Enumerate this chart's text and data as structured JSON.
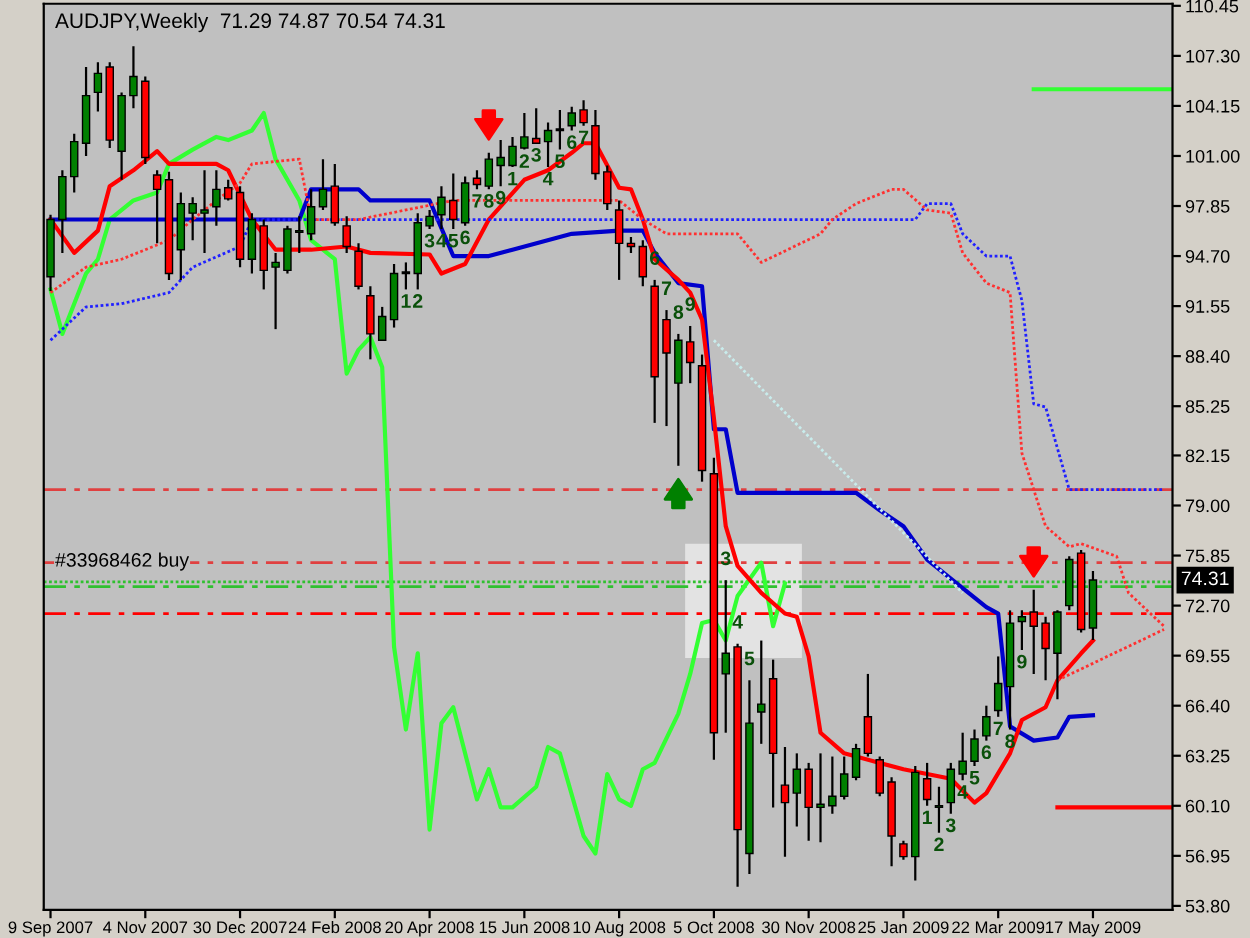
{
  "chart_data": {
    "type": "candlestick",
    "title": "AUDJPY,Weekly  71.29 74.87 70.54 74.31",
    "x": [
      "2007-09-09",
      "2007-09-16",
      "2007-09-23",
      "2007-09-30",
      "2007-10-07",
      "2007-10-14",
      "2007-10-21",
      "2007-10-28",
      "2007-11-04",
      "2007-11-11",
      "2007-11-18",
      "2007-11-25",
      "2007-12-02",
      "2007-12-09",
      "2007-12-16",
      "2007-12-23",
      "2007-12-30",
      "2008-01-06",
      "2008-01-13",
      "2008-01-20",
      "2008-01-27",
      "2008-02-03",
      "2008-02-10",
      "2008-02-17",
      "2008-02-24",
      "2008-03-02",
      "2008-03-09",
      "2008-03-16",
      "2008-03-23",
      "2008-03-30",
      "2008-04-06",
      "2008-04-13",
      "2008-04-20",
      "2008-04-27",
      "2008-05-04",
      "2008-05-11",
      "2008-05-18",
      "2008-05-25",
      "2008-06-01",
      "2008-06-08",
      "2008-06-15",
      "2008-06-22",
      "2008-06-29",
      "2008-07-06",
      "2008-07-13",
      "2008-07-20",
      "2008-07-27",
      "2008-08-03",
      "2008-08-10",
      "2008-08-17",
      "2008-08-24",
      "2008-08-31",
      "2008-09-07",
      "2008-09-14",
      "2008-09-21",
      "2008-09-28",
      "2008-10-05",
      "2008-10-12",
      "2008-10-19",
      "2008-10-26",
      "2008-11-02",
      "2008-11-09",
      "2008-11-16",
      "2008-11-23",
      "2008-11-30",
      "2008-12-07",
      "2008-12-14",
      "2008-12-21",
      "2008-12-28",
      "2009-01-04",
      "2009-01-11",
      "2009-01-18",
      "2009-01-25",
      "2009-02-01",
      "2009-02-08",
      "2009-02-15",
      "2009-02-22",
      "2009-03-01",
      "2009-03-08",
      "2009-03-15",
      "2009-03-22",
      "2009-03-29",
      "2009-04-05",
      "2009-04-12",
      "2009-04-19",
      "2009-04-26",
      "2009-05-03",
      "2009-05-10",
      "2009-05-17"
    ],
    "ohlc": [
      [
        93.4,
        97.3,
        92.5,
        97.0
      ],
      [
        97.0,
        100.1,
        94.9,
        99.7
      ],
      [
        99.7,
        102.4,
        98.7,
        101.9
      ],
      [
        101.8,
        106.6,
        101.0,
        104.8
      ],
      [
        105.0,
        106.9,
        103.8,
        106.2
      ],
      [
        106.6,
        106.9,
        101.5,
        102.0
      ],
      [
        101.3,
        105.0,
        99.5,
        104.8
      ],
      [
        104.8,
        107.9,
        104.0,
        106.0
      ],
      [
        105.7,
        106.0,
        100.5,
        100.9
      ],
      [
        99.8,
        100.1,
        95.5,
        98.9
      ],
      [
        99.5,
        100.0,
        93.2,
        93.6
      ],
      [
        95.1,
        98.7,
        93.2,
        98.0
      ],
      [
        97.4,
        98.4,
        95.7,
        98.0
      ],
      [
        97.4,
        100.1,
        94.9,
        97.6
      ],
      [
        97.8,
        100.1,
        96.6,
        98.9
      ],
      [
        99.0,
        99.5,
        98.2,
        98.3
      ],
      [
        98.7,
        99.1,
        94.0,
        94.5
      ],
      [
        94.5,
        97.4,
        93.6,
        97.0
      ],
      [
        96.6,
        97.0,
        92.6,
        93.8
      ],
      [
        94.0,
        94.9,
        90.1,
        94.3
      ],
      [
        93.8,
        96.6,
        93.6,
        96.4
      ],
      [
        96.2,
        97.2,
        94.9,
        96.3
      ],
      [
        96.1,
        98.9,
        95.7,
        97.8
      ],
      [
        97.8,
        100.8,
        97.6,
        98.9
      ],
      [
        99.1,
        100.5,
        96.6,
        96.8
      ],
      [
        96.6,
        97.2,
        94.9,
        95.3
      ],
      [
        95.0,
        95.5,
        92.6,
        92.8
      ],
      [
        92.2,
        92.8,
        88.2,
        89.8
      ],
      [
        89.4,
        91.5,
        89.4,
        90.9
      ],
      [
        90.7,
        94.2,
        90.2,
        93.6
      ],
      [
        93.6,
        94.3,
        92.6,
        93.7
      ],
      [
        93.6,
        97.4,
        92.6,
        96.8
      ],
      [
        96.6,
        97.6,
        96.4,
        97.2
      ],
      [
        97.3,
        99.1,
        96.4,
        98.4
      ],
      [
        98.2,
        99.9,
        96.4,
        97.0
      ],
      [
        96.8,
        99.7,
        96.6,
        99.3
      ],
      [
        99.6,
        100.1,
        98.9,
        99.2
      ],
      [
        99.1,
        101.2,
        98.9,
        100.8
      ],
      [
        100.4,
        102.0,
        99.1,
        100.9
      ],
      [
        100.4,
        102.2,
        100.3,
        101.6
      ],
      [
        101.5,
        103.7,
        101.4,
        102.2
      ],
      [
        102.1,
        104.0,
        101.8,
        101.8
      ],
      [
        101.9,
        103.1,
        100.3,
        102.6
      ],
      [
        102.6,
        103.9,
        101.4,
        102.7
      ],
      [
        102.9,
        104.1,
        102.6,
        103.7
      ],
      [
        103.9,
        104.5,
        102.9,
        103.1
      ],
      [
        102.9,
        103.9,
        99.5,
        99.9
      ],
      [
        100.0,
        100.4,
        97.6,
        98.0
      ],
      [
        97.6,
        98.2,
        93.2,
        95.5
      ],
      [
        95.5,
        95.9,
        94.9,
        95.3
      ],
      [
        95.3,
        95.7,
        92.8,
        93.4
      ],
      [
        92.8,
        93.2,
        84.2,
        87.1
      ],
      [
        90.7,
        91.3,
        84.0,
        88.6
      ],
      [
        86.7,
        89.8,
        81.5,
        89.4
      ],
      [
        89.3,
        90.3,
        86.7,
        88.0
      ],
      [
        87.8,
        88.5,
        80.5,
        81.2
      ],
      [
        81.0,
        82.0,
        63.0,
        64.7
      ],
      [
        68.4,
        74.3,
        64.7,
        69.7
      ],
      [
        70.1,
        70.3,
        55.0,
        58.6
      ],
      [
        57.1,
        68.0,
        55.8,
        65.3
      ],
      [
        66.0,
        70.5,
        64.0,
        66.5
      ],
      [
        68.1,
        69.3,
        60.0,
        63.4
      ],
      [
        61.4,
        63.8,
        56.9,
        60.3
      ],
      [
        60.9,
        63.4,
        58.8,
        62.4
      ],
      [
        62.4,
        62.8,
        57.9,
        60.0
      ],
      [
        60.0,
        63.4,
        57.8,
        60.2
      ],
      [
        60.1,
        63.2,
        59.6,
        60.7
      ],
      [
        60.7,
        63.2,
        60.5,
        62.1
      ],
      [
        61.9,
        64.0,
        61.7,
        63.7
      ],
      [
        65.7,
        68.4,
        63.2,
        63.4
      ],
      [
        63.0,
        63.2,
        60.7,
        60.9
      ],
      [
        61.6,
        61.9,
        56.3,
        58.2
      ],
      [
        57.7,
        57.9,
        56.7,
        56.9
      ],
      [
        56.9,
        62.6,
        55.4,
        62.2
      ],
      [
        61.8,
        62.8,
        60.1,
        60.5
      ],
      [
        60.0,
        61.3,
        58.4,
        60.1
      ],
      [
        60.3,
        62.8,
        59.6,
        62.4
      ],
      [
        62.1,
        64.7,
        61.7,
        62.9
      ],
      [
        62.9,
        64.9,
        62.6,
        64.3
      ],
      [
        64.5,
        66.4,
        64.2,
        65.7
      ],
      [
        66.1,
        69.5,
        65.7,
        67.8
      ],
      [
        67.6,
        72.4,
        64.9,
        71.6
      ],
      [
        71.7,
        72.4,
        69.9,
        72.0
      ],
      [
        72.3,
        73.7,
        68.4,
        71.4
      ],
      [
        71.6,
        72.0,
        68.0,
        70.0
      ],
      [
        69.7,
        72.4,
        66.8,
        72.3
      ],
      [
        72.7,
        75.8,
        72.4,
        75.6
      ],
      [
        76.0,
        76.2,
        71.0,
        71.2
      ],
      [
        71.29,
        74.87,
        70.54,
        74.31
      ]
    ],
    "series": [
      {
        "type": "line",
        "color": "#2020ff",
        "line_style": "dotted",
        "x": [
          "2007-09-09",
          "2007-09-30",
          "2007-10-21",
          "2007-11-18",
          "2007-12-02",
          "2007-12-30",
          "2008-01-06",
          "2009-02-01",
          "2009-02-08",
          "2009-02-22",
          "2009-03-01",
          "2009-03-15",
          "2009-03-29",
          "2009-04-05",
          "2009-04-12",
          "2009-04-19",
          "2009-05-03",
          "2009-06-28"
        ],
        "values": [
          89.4,
          91.5,
          91.7,
          92.4,
          94.0,
          95.3,
          97.0,
          97.0,
          98.0,
          98.0,
          96.1,
          94.7,
          94.7,
          91.9,
          85.4,
          85.2,
          80.0,
          80.0
        ]
      },
      {
        "type": "line",
        "color": "#ff3030",
        "line_style": "dotted",
        "x": [
          "2007-09-09",
          "2007-09-30",
          "2007-10-21",
          "2007-11-18",
          "2007-12-02",
          "2007-12-16",
          "2007-12-30",
          "2008-01-06",
          "2008-02-03",
          "2008-02-10",
          "2008-03-09",
          "2008-05-04",
          "2008-08-10",
          "2008-08-24",
          "2008-09-07",
          "2008-10-19",
          "2008-11-02",
          "2008-12-07",
          "2008-12-14",
          "2008-12-28",
          "2009-01-18",
          "2009-01-25",
          "2009-02-08",
          "2009-02-22",
          "2009-03-01",
          "2009-03-15",
          "2009-03-29",
          "2009-04-05",
          "2009-04-19",
          "2009-05-03",
          "2009-05-10",
          "2009-05-31",
          "2009-06-07",
          "2009-06-28"
        ],
        "values": [
          92.4,
          94.0,
          94.5,
          95.7,
          97.0,
          98.2,
          99.3,
          100.5,
          100.8,
          97.0,
          97.0,
          98.2,
          98.2,
          97.0,
          96.1,
          96.1,
          94.3,
          96.1,
          97.0,
          98.0,
          98.9,
          98.9,
          97.6,
          97.4,
          94.9,
          93.0,
          92.4,
          82.3,
          77.7,
          76.4,
          76.6,
          75.8,
          73.5,
          71.4
        ]
      },
      {
        "type": "line",
        "color": "#ff3030",
        "line_style": "dotted",
        "x": [
          "2009-04-26",
          "2009-06-28"
        ],
        "values": [
          68.0,
          71.2
        ]
      },
      {
        "type": "line",
        "color": "#c8ecec",
        "line_style": "dotted",
        "x": [
          "2008-10-05",
          "2009-03-01"
        ],
        "values": [
          89.4,
          73.5
        ]
      },
      {
        "type": "line",
        "color": "#33ff33",
        "line_style": "solid",
        "x": [
          "2007-09-09",
          "2007-09-16",
          "2007-09-30",
          "2007-10-07",
          "2007-10-14",
          "2007-10-28",
          "2007-11-11",
          "2007-11-18",
          "2007-12-02",
          "2007-12-16",
          "2007-12-23",
          "2008-01-06",
          "2008-01-13",
          "2008-01-20",
          "2008-02-03",
          "2008-02-10",
          "2008-02-24",
          "2008-03-02",
          "2008-03-09",
          "2008-03-16",
          "2008-03-23",
          "2008-03-30",
          "2008-04-06",
          "2008-04-13",
          "2008-04-20",
          "2008-04-27",
          "2008-05-04",
          "2008-05-18",
          "2008-05-25",
          "2008-06-01",
          "2008-06-08",
          "2008-06-22",
          "2008-06-29",
          "2008-07-06",
          "2008-07-20",
          "2008-07-27",
          "2008-08-03",
          "2008-08-10",
          "2008-08-17",
          "2008-08-24",
          "2008-08-31",
          "2008-09-14",
          "2008-09-21",
          "2008-09-28",
          "2008-10-05",
          "2008-10-12",
          "2008-10-19",
          "2008-11-02",
          "2008-11-09",
          "2008-11-16"
        ],
        "values": [
          92.6,
          89.8,
          93.6,
          94.5,
          97.0,
          98.2,
          98.7,
          100.5,
          101.4,
          102.2,
          102.0,
          102.6,
          103.7,
          100.8,
          98.2,
          95.7,
          94.5,
          87.3,
          88.8,
          89.6,
          87.7,
          70.1,
          64.9,
          69.7,
          58.6,
          65.3,
          66.3,
          60.5,
          62.4,
          60.0,
          60.0,
          61.3,
          63.8,
          63.4,
          58.2,
          57.1,
          62.1,
          60.5,
          60.1,
          62.4,
          62.8,
          65.9,
          68.4,
          71.6,
          71.8,
          70.5,
          73.3,
          75.4,
          71.4,
          74.1
        ]
      },
      {
        "type": "line",
        "color": "#0000cc",
        "line_style": "solid",
        "x": [
          "2007-09-09",
          "2008-02-03",
          "2008-02-10",
          "2008-03-09",
          "2008-03-16",
          "2008-04-20",
          "2008-05-04",
          "2008-05-25",
          "2008-06-08",
          "2008-07-13",
          "2008-08-10",
          "2008-08-24",
          "2008-08-31",
          "2008-09-14",
          "2008-09-28",
          "2008-10-05",
          "2008-10-12",
          "2008-10-19",
          "2008-12-28",
          "2009-01-11",
          "2009-01-25",
          "2009-02-08",
          "2009-03-15",
          "2009-03-22",
          "2009-03-29",
          "2009-04-12",
          "2009-04-26",
          "2009-05-03",
          "2009-05-17"
        ],
        "values": [
          97.0,
          97.0,
          98.9,
          98.9,
          98.2,
          98.2,
          94.7,
          94.7,
          95.1,
          96.1,
          96.3,
          96.3,
          94.9,
          93.0,
          92.8,
          83.8,
          83.8,
          79.8,
          79.8,
          78.7,
          77.7,
          75.6,
          72.6,
          72.2,
          65.1,
          64.2,
          64.4,
          65.7,
          65.8
        ]
      },
      {
        "type": "line",
        "color": "#ff0000",
        "line_style": "solid",
        "x": [
          "2007-09-09",
          "2007-09-23",
          "2007-10-07",
          "2007-10-14",
          "2007-10-28",
          "2007-11-11",
          "2007-11-18",
          "2007-12-16",
          "2007-12-23",
          "2008-01-06",
          "2008-01-20",
          "2008-02-10",
          "2008-03-02",
          "2008-03-16",
          "2008-04-20",
          "2008-04-27",
          "2008-05-11",
          "2008-05-25",
          "2008-06-15",
          "2008-06-29",
          "2008-07-13",
          "2008-07-20",
          "2008-07-27",
          "2008-08-10",
          "2008-08-17",
          "2008-08-24",
          "2008-08-31",
          "2008-09-14",
          "2008-09-21",
          "2008-09-28",
          "2008-10-05",
          "2008-10-12",
          "2008-10-19",
          "2008-11-02",
          "2008-11-16",
          "2008-11-23",
          "2008-11-30",
          "2008-12-07",
          "2008-12-21",
          "2009-01-11",
          "2009-01-25",
          "2009-02-22",
          "2009-03-08",
          "2009-03-15",
          "2009-03-29",
          "2009-04-05",
          "2009-04-19",
          "2009-04-26",
          "2009-05-10",
          "2009-05-17"
        ],
        "values": [
          97.0,
          94.9,
          96.3,
          99.1,
          100.1,
          101.3,
          100.5,
          100.5,
          100.1,
          97.0,
          95.1,
          95.1,
          95.3,
          94.9,
          94.8,
          93.6,
          94.2,
          97.0,
          99.5,
          100.1,
          101.2,
          101.8,
          101.8,
          99.0,
          98.9,
          97.0,
          94.5,
          93.2,
          92.4,
          90.7,
          84.5,
          77.7,
          75.2,
          73.5,
          72.2,
          72.0,
          69.5,
          64.7,
          63.4,
          62.8,
          62.4,
          61.8,
          60.3,
          60.9,
          63.4,
          65.5,
          66.3,
          68.0,
          69.7,
          70.5
        ]
      },
      {
        "type": "line",
        "color": "#33ff33",
        "line_style": "solid",
        "x": [
          "2009-04-12",
          "2009-07-03"
        ],
        "values": [
          105.2,
          105.2
        ]
      },
      {
        "type": "line",
        "color": "#ff0000",
        "line_style": "solid",
        "x": [
          "2009-04-26",
          "2009-07-03"
        ],
        "values": [
          60.0,
          60.0
        ]
      }
    ],
    "ref_lines": [
      {
        "axis": "y",
        "value": 80.0,
        "color": "#e04040",
        "line_style": "dashed"
      },
      {
        "axis": "y",
        "value": 75.4,
        "color": "#e04040",
        "line_style": "dashed"
      },
      {
        "axis": "y",
        "value": 74.2,
        "color": "#30c030",
        "line_style": "dotted",
        "label": "#33968462 buy"
      },
      {
        "axis": "y",
        "value": 73.9,
        "color": "#30c030",
        "line_style": "dashed"
      },
      {
        "axis": "y",
        "value": 72.2,
        "color": "#ff0000",
        "line_style": "dashed"
      }
    ],
    "annotations": [
      {
        "text": "1",
        "x": "2008-04-06",
        "y": 92.6
      },
      {
        "text": "2",
        "x": "2008-04-13",
        "y": 92.6
      },
      {
        "text": "3",
        "x": "2008-04-20",
        "y": 96.4
      },
      {
        "text": "4",
        "x": "2008-04-27",
        "y": 96.4
      },
      {
        "text": "5",
        "x": "2008-05-04",
        "y": 96.4
      },
      {
        "text": "6",
        "x": "2008-05-11",
        "y": 96.6
      },
      {
        "text": "7",
        "x": "2008-05-18",
        "y": 98.9
      },
      {
        "text": "8",
        "x": "2008-05-25",
        "y": 98.9
      },
      {
        "text": "9",
        "x": "2008-06-01",
        "y": 99.1
      },
      {
        "text": "1",
        "x": "2008-06-08",
        "y": 100.3
      },
      {
        "text": "2",
        "x": "2008-06-15",
        "y": 101.4
      },
      {
        "text": "3",
        "x": "2008-06-22",
        "y": 101.8
      },
      {
        "text": "4",
        "x": "2008-06-29",
        "y": 100.3
      },
      {
        "text": "5",
        "x": "2008-07-06",
        "y": 101.4
      },
      {
        "text": "6",
        "x": "2008-07-13",
        "y": 102.6
      },
      {
        "text": "7",
        "x": "2008-07-20",
        "y": 102.9
      },
      {
        "text": "6",
        "x": "2008-08-31",
        "y": 93.2
      },
      {
        "text": "7",
        "x": "2008-09-07",
        "y": 91.3
      },
      {
        "text": "8",
        "x": "2008-09-14",
        "y": 89.8
      },
      {
        "text": "9",
        "x": "2008-09-21",
        "y": 90.3
      },
      {
        "text": "3",
        "x": "2008-10-12",
        "y": 74.3
      },
      {
        "text": "4",
        "x": "2008-10-19",
        "y": 70.3
      },
      {
        "text": "5",
        "x": "2008-10-26",
        "y": 68.0
      },
      {
        "text": "1",
        "x": "2009-02-08",
        "y": 60.1
      },
      {
        "text": "2",
        "x": "2009-02-15",
        "y": 58.4
      },
      {
        "text": "3",
        "x": "2009-02-22",
        "y": 59.6
      },
      {
        "text": "4",
        "x": "2009-03-01",
        "y": 61.7
      },
      {
        "text": "5",
        "x": "2009-03-08",
        "y": 62.6
      },
      {
        "text": "6",
        "x": "2009-03-15",
        "y": 64.2
      },
      {
        "text": "7",
        "x": "2009-03-22",
        "y": 65.7
      },
      {
        "text": "8",
        "x": "2009-03-29",
        "y": 64.9
      },
      {
        "text": "9",
        "x": "2009-04-05",
        "y": 69.9
      },
      {
        "text": "74.31",
        "y": 74.31
      }
    ],
    "xlim": [
      "2007-09-05",
      "2009-07-03"
    ],
    "xticks": [
      {
        "value": "2007-09-09",
        "label": "9 Sep 2007"
      },
      {
        "value": "2007-11-04",
        "label": "4 Nov 2007"
      },
      {
        "value": "2007-12-30",
        "label": "30 Dec 2007"
      },
      {
        "value": "2008-02-24",
        "label": "24 Feb 2008"
      },
      {
        "value": "2008-04-20",
        "label": "20 Apr 2008"
      },
      {
        "value": "2008-06-15",
        "label": "15 Jun 2008"
      },
      {
        "value": "2008-08-10",
        "label": "10 Aug 2008"
      },
      {
        "value": "2008-10-05",
        "label": "5 Oct 2008"
      },
      {
        "value": "2008-11-30",
        "label": "30 Nov 2008"
      },
      {
        "value": "2009-01-25",
        "label": "25 Jan 2009"
      },
      {
        "value": "2009-03-22",
        "label": "22 Mar 2009"
      },
      {
        "value": "2009-05-17",
        "label": "17 May 2009"
      }
    ],
    "ylim": [
      53.55,
      110.58
    ],
    "yticks": [
      110.45,
      {
        "value": 107.3,
        "label": "107.30"
      },
      104.15,
      {
        "value": 101.0,
        "label": "101.00"
      },
      97.85,
      {
        "value": 94.7,
        "label": "94.70"
      },
      91.55,
      {
        "value": 88.4,
        "label": "88.40"
      },
      85.25,
      82.15,
      {
        "value": 79.0,
        "label": "79.00"
      },
      75.85,
      {
        "value": 72.7,
        "label": "72.70"
      },
      69.55,
      {
        "value": 66.4,
        "label": "66.40"
      },
      63.25,
      {
        "value": 60.1,
        "label": "60.10"
      },
      56.95,
      {
        "value": 53.8,
        "label": "53.80"
      }
    ]
  }
}
